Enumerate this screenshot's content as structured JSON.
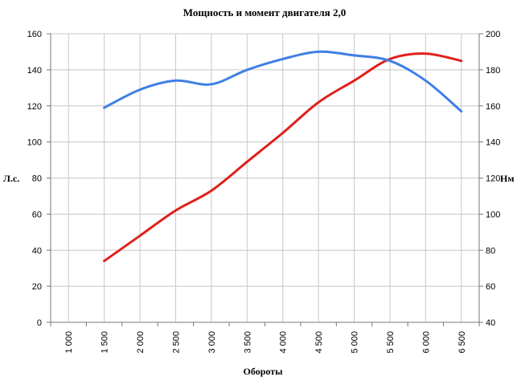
{
  "chart_data": {
    "type": "line",
    "title": "Мощность и момент двигателя 2,0",
    "xlabel": "Обороты",
    "ylabel_left": "Л.с.",
    "ylabel_right": "Нм",
    "x_categories": [
      "1 000",
      "1 500",
      "2 000",
      "2 500",
      "3 000",
      "3 500",
      "4 000",
      "4 500",
      "5 000",
      "5 500",
      "6 000",
      "6 500"
    ],
    "x_range": [
      750,
      6750
    ],
    "y_left": {
      "min": 0,
      "max": 160,
      "step": 20,
      "ticks": [
        "0",
        "20",
        "40",
        "60",
        "80",
        "100",
        "120",
        "140",
        "160"
      ]
    },
    "y_right": {
      "min": 40,
      "max": 200,
      "step": 20,
      "ticks": [
        "40",
        "60",
        "80",
        "100",
        "120",
        "140",
        "160",
        "180",
        "200"
      ]
    },
    "grid": {
      "vertical": true,
      "horizontal": true
    },
    "series": [
      {
        "color": "#e0201c",
        "axis": "left",
        "points": [
          [
            1500,
            34
          ],
          [
            2000,
            48
          ],
          [
            2500,
            62
          ],
          [
            3000,
            73
          ],
          [
            3500,
            89
          ],
          [
            4000,
            105
          ],
          [
            4500,
            122
          ],
          [
            5000,
            134
          ],
          [
            5500,
            146
          ],
          [
            6000,
            149
          ],
          [
            6500,
            145
          ]
        ]
      },
      {
        "color": "#3f7fe6",
        "axis": "right",
        "points": [
          [
            1500,
            159
          ],
          [
            2000,
            169
          ],
          [
            2500,
            174
          ],
          [
            3000,
            172
          ],
          [
            3500,
            180
          ],
          [
            4000,
            186
          ],
          [
            4500,
            190
          ],
          [
            5000,
            188
          ],
          [
            5500,
            185
          ],
          [
            6000,
            174
          ],
          [
            6500,
            157
          ]
        ]
      }
    ]
  }
}
